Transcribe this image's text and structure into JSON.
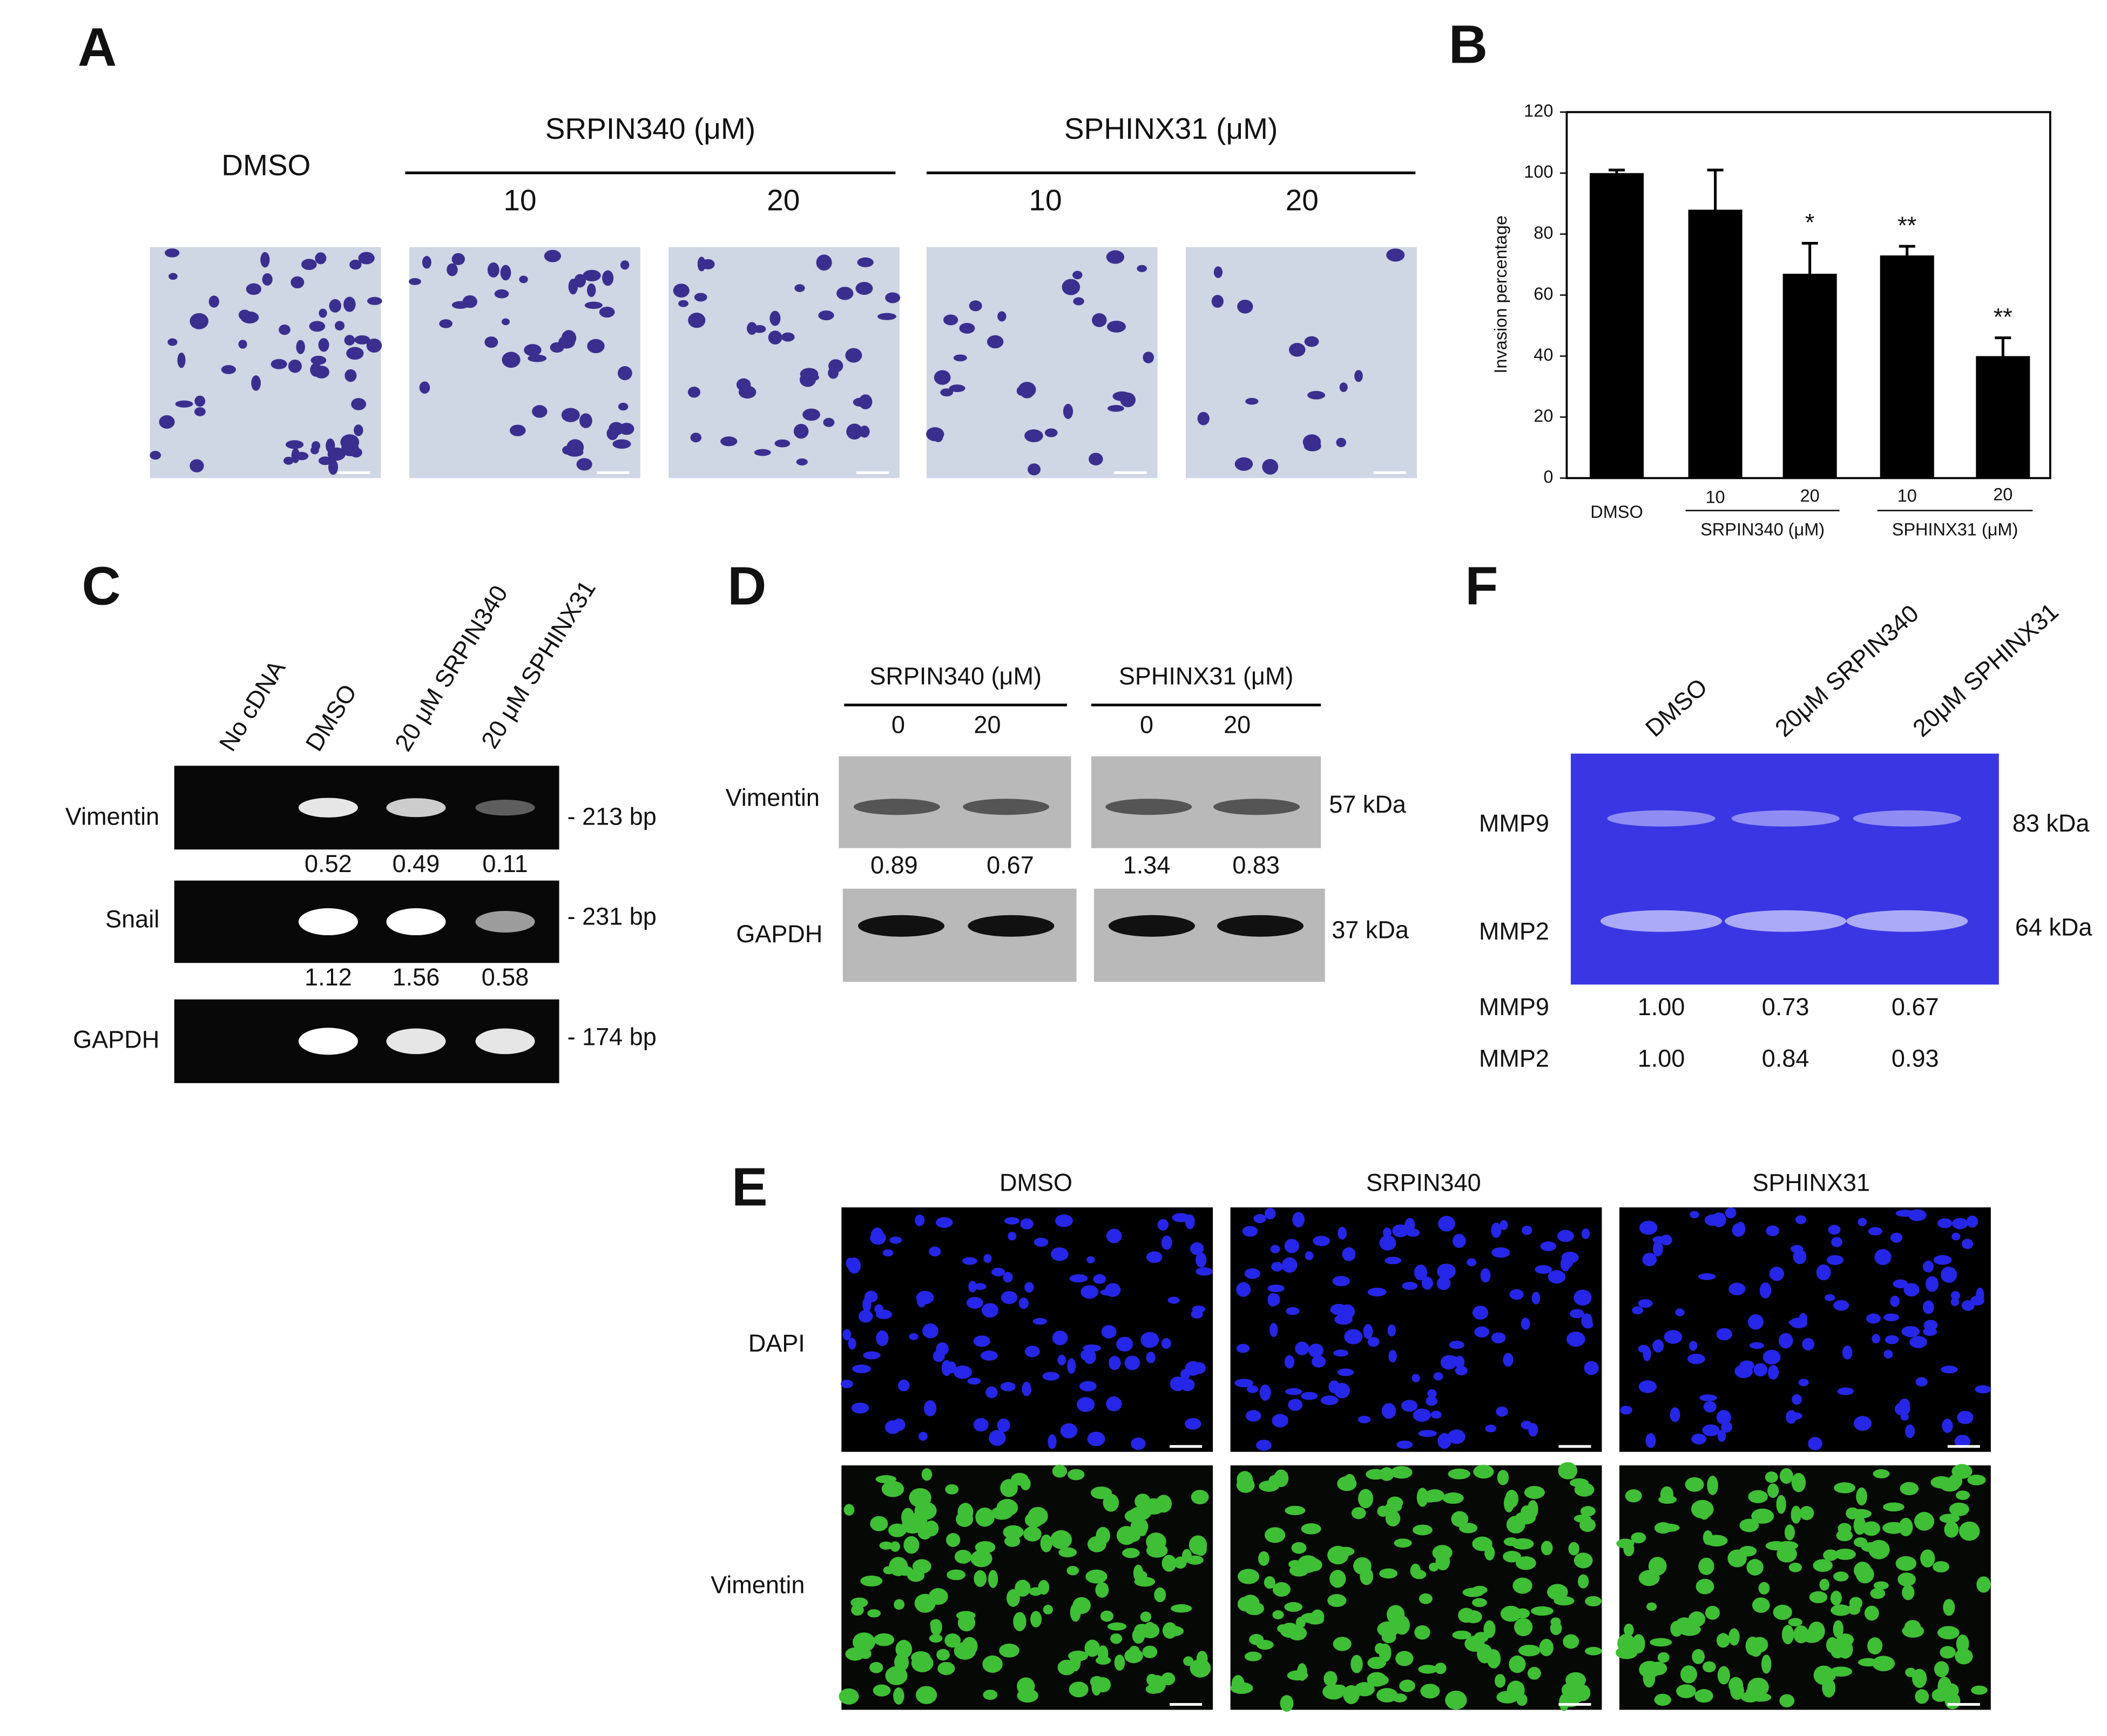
{
  "panels": {
    "A": {
      "label": "A",
      "control": "DMSO",
      "groups": [
        {
          "name": "SRPIN340 (μM)",
          "doses": [
            "10",
            "20"
          ]
        },
        {
          "name": "SPHINX31 (μM)",
          "doses": [
            "10",
            "20"
          ]
        }
      ]
    },
    "B": {
      "label": "B"
    },
    "C": {
      "label": "C",
      "lanes": [
        "No cDNA",
        "DMSO",
        "20 μM SRPIN340",
        "20 μM SPHINX31"
      ],
      "genes": [
        {
          "name": "Vimentin",
          "size": "- 213 bp",
          "ratios": [
            "0.52",
            "0.49",
            "0.11"
          ]
        },
        {
          "name": "Snail",
          "size": "- 231 bp",
          "ratios": [
            "1.12",
            "1.56",
            "0.58"
          ]
        },
        {
          "name": "GAPDH",
          "size": "- 174 bp"
        }
      ]
    },
    "D": {
      "label": "D",
      "groups": [
        {
          "name": "SRPIN340 (μM)",
          "doses": [
            "0",
            "20"
          ],
          "ratios": [
            "0.89",
            "0.67"
          ]
        },
        {
          "name": "SPHINX31 (μM)",
          "doses": [
            "0",
            "20"
          ],
          "ratios": [
            "1.34",
            "0.83"
          ]
        }
      ],
      "proteins": [
        {
          "name": "Vimentin",
          "size": "57 kDa"
        },
        {
          "name": "GAPDH",
          "size": "37 kDa"
        }
      ]
    },
    "E": {
      "label": "E",
      "columns": [
        "DMSO",
        "SRPIN340",
        "SPHINX31"
      ],
      "rows": [
        "DAPI",
        "Vimentin"
      ]
    },
    "F": {
      "label": "F",
      "lanes": [
        "DMSO",
        "20μM SRPIN340",
        "20μM SPHINX31"
      ],
      "bands": [
        {
          "name": "MMP9",
          "size": "83 kDa"
        },
        {
          "name": "MMP2",
          "size": "64 kDa"
        }
      ],
      "quant": [
        {
          "name": "MMP9",
          "values": [
            "1.00",
            "0.73",
            "0.67"
          ]
        },
        {
          "name": "MMP2",
          "values": [
            "1.00",
            "0.84",
            "0.93"
          ]
        }
      ]
    }
  },
  "chart_data": {
    "type": "bar",
    "y_label": "Invasion percentage",
    "categories": [
      "DMSO",
      "10",
      "20",
      "10",
      "20"
    ],
    "groups": [
      "SRPIN340 (μM)",
      "SPHINX31 (μM)"
    ],
    "values": [
      100,
      88,
      67,
      73,
      40
    ],
    "errors": [
      1,
      13,
      10,
      3,
      6
    ],
    "significance": [
      null,
      null,
      "*",
      "**",
      "**"
    ],
    "color": "#000000",
    "ylim": [
      0,
      120
    ],
    "yticks": [
      0,
      20,
      40,
      60,
      80,
      100,
      120
    ]
  }
}
